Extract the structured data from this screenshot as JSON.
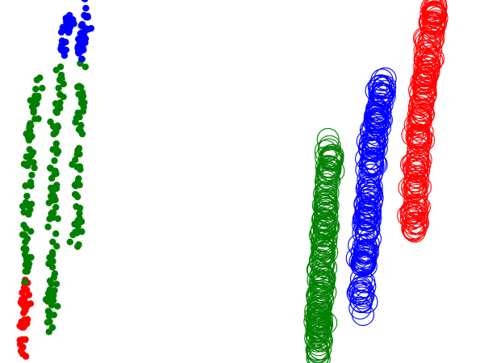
{
  "chart_data": [
    {
      "type": "scatter",
      "marker": "filled-dot",
      "xlim": [
        0,
        10
      ],
      "ylim": [
        0,
        10
      ],
      "axes_visible": false,
      "grid": false,
      "legend": "none",
      "series": [
        {
          "color": "#ff0000",
          "anchors": [
            {
              "x": 1.0,
              "y": 2.35
            },
            {
              "x": 1.0,
              "y": 1.6
            },
            {
              "x": 0.95,
              "y": 1.0
            },
            {
              "x": 0.92,
              "y": 0.2
            }
          ],
          "count": 40,
          "spread": 0.1
        },
        {
          "color": "#008000",
          "anchors": [
            {
              "x": 1.55,
              "y": 7.7
            },
            {
              "x": 1.3,
              "y": 6.5
            },
            {
              "x": 1.15,
              "y": 5.0
            },
            {
              "x": 1.05,
              "y": 3.5
            },
            {
              "x": 1.1,
              "y": 2.35
            }
          ],
          "count": 80,
          "spread": 0.1
        },
        {
          "color": "#008000",
          "anchors": [
            {
              "x": 2.55,
              "y": 8.2
            },
            {
              "x": 2.3,
              "y": 6.5
            },
            {
              "x": 2.2,
              "y": 4.5
            },
            {
              "x": 2.1,
              "y": 2.0
            },
            {
              "x": 2.05,
              "y": 1.0
            }
          ],
          "count": 95,
          "spread": 0.1
        },
        {
          "color": "#0000ff",
          "anchors": [
            {
              "x": 2.9,
              "y": 9.6
            },
            {
              "x": 2.5,
              "y": 8.6
            }
          ],
          "count": 35,
          "spread": 0.1
        },
        {
          "color": "#008000",
          "anchors": [
            {
              "x": 3.45,
              "y": 8.4
            },
            {
              "x": 3.25,
              "y": 6.0
            },
            {
              "x": 3.2,
              "y": 3.0
            }
          ],
          "count": 60,
          "spread": 0.1
        },
        {
          "color": "#0000ff",
          "anchors": [
            {
              "x": 3.95,
              "y": 12.5
            },
            {
              "x": 3.6,
              "y": 11.0
            },
            {
              "x": 3.5,
              "y": 9.0
            },
            {
              "x": 3.25,
              "y": 8.4
            }
          ],
          "count": 70,
          "spread": 0.1
        }
      ]
    },
    {
      "type": "scatter",
      "marker": "hollow-circle",
      "xlim": [
        0,
        10
      ],
      "ylim": [
        0,
        10
      ],
      "axes_visible": false,
      "grid": false,
      "legend": "none",
      "series": [
        {
          "color": "#008000",
          "anchors": [
            {
              "x": 3.75,
              "y": 6.0
            },
            {
              "x": 3.45,
              "y": 4.5
            },
            {
              "x": 3.35,
              "y": 3.0
            },
            {
              "x": 3.2,
              "y": 1.5
            },
            {
              "x": 3.15,
              "y": 0.1
            }
          ],
          "count": 180,
          "spread": 0.09
        },
        {
          "color": "#0000ff",
          "anchors": [
            {
              "x": 5.85,
              "y": 7.8
            },
            {
              "x": 5.5,
              "y": 6.5
            },
            {
              "x": 5.3,
              "y": 5.0
            },
            {
              "x": 5.1,
              "y": 3.5
            },
            {
              "x": 4.95,
              "y": 1.5
            }
          ],
          "count": 180,
          "spread": 0.09
        },
        {
          "color": "#ff0000",
          "anchors": [
            {
              "x": 8.0,
              "y": 9.8
            },
            {
              "x": 7.7,
              "y": 8.5
            },
            {
              "x": 7.4,
              "y": 7.0
            },
            {
              "x": 7.2,
              "y": 5.5
            },
            {
              "x": 7.1,
              "y": 3.5
            }
          ],
          "count": 180,
          "spread": 0.09
        }
      ]
    }
  ]
}
